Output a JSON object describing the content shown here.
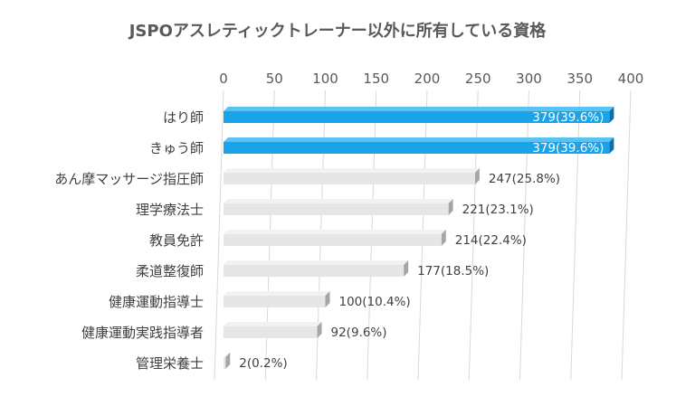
{
  "chart_data": {
    "type": "bar",
    "orientation": "horizontal",
    "title": "JSPOアスレティックトレーナー以外に所有している資格",
    "xlim": [
      0,
      400
    ],
    "xticks": [
      "0",
      "50",
      "100",
      "150",
      "200",
      "250",
      "300",
      "350",
      "400"
    ],
    "grid": true,
    "categories": [
      "はり師",
      "きゅう師",
      "あん摩マッサージ指圧師",
      "理学療法士",
      "教員免許",
      "柔道整復師",
      "健康運動指導士",
      "健康運動実践指導者",
      "管理栄養士"
    ],
    "values": [
      379,
      379,
      247,
      221,
      214,
      177,
      100,
      92,
      2
    ],
    "data_labels": [
      "379(39.6%)",
      "379(39.6%)",
      "247(25.8%)",
      "221(23.1%)",
      "214(22.4%)",
      "177(18.5%)",
      "100(10.4%)",
      "92(9.6%)",
      "2(0.2%)"
    ],
    "highlight_color": "#1aa3e8",
    "bar_color": "#e6e6e6"
  }
}
